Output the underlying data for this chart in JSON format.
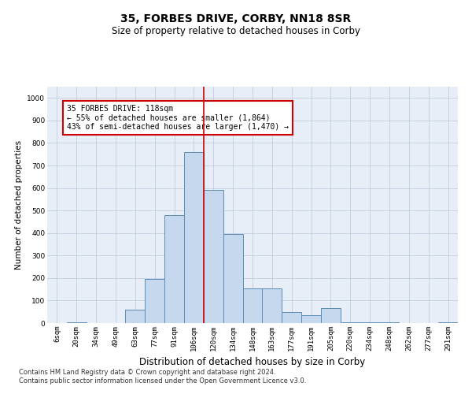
{
  "title": "35, FORBES DRIVE, CORBY, NN18 8SR",
  "subtitle": "Size of property relative to detached houses in Corby",
  "xlabel": "Distribution of detached houses by size in Corby",
  "ylabel": "Number of detached properties",
  "categories": [
    "6sqm",
    "20sqm",
    "34sqm",
    "49sqm",
    "63sqm",
    "77sqm",
    "91sqm",
    "106sqm",
    "120sqm",
    "134sqm",
    "148sqm",
    "163sqm",
    "177sqm",
    "191sqm",
    "205sqm",
    "220sqm",
    "234sqm",
    "248sqm",
    "262sqm",
    "277sqm",
    "291sqm"
  ],
  "values": [
    0,
    3,
    0,
    0,
    60,
    195,
    480,
    760,
    590,
    395,
    155,
    155,
    50,
    35,
    65,
    3,
    3,
    3,
    0,
    0,
    3
  ],
  "bar_color": "#c5d8ed",
  "bar_edge_color": "#5b8db8",
  "vline_color": "#cc0000",
  "vline_x": 7.5,
  "annotation_text": "35 FORBES DRIVE: 118sqm\n← 55% of detached houses are smaller (1,864)\n43% of semi-detached houses are larger (1,470) →",
  "annotation_box_color": "#ffffff",
  "annotation_box_edge_color": "#cc0000",
  "ylim": [
    0,
    1050
  ],
  "yticks": [
    0,
    100,
    200,
    300,
    400,
    500,
    600,
    700,
    800,
    900,
    1000
  ],
  "plot_bg_color": "#e8eef8",
  "grid_color": "#b0bcd4",
  "footnote": "Contains HM Land Registry data © Crown copyright and database right 2024.\nContains public sector information licensed under the Open Government Licence v3.0.",
  "title_fontsize": 10,
  "subtitle_fontsize": 8.5,
  "xlabel_fontsize": 8.5,
  "ylabel_fontsize": 7.5,
  "tick_fontsize": 6.5,
  "annotation_fontsize": 7,
  "footnote_fontsize": 6
}
